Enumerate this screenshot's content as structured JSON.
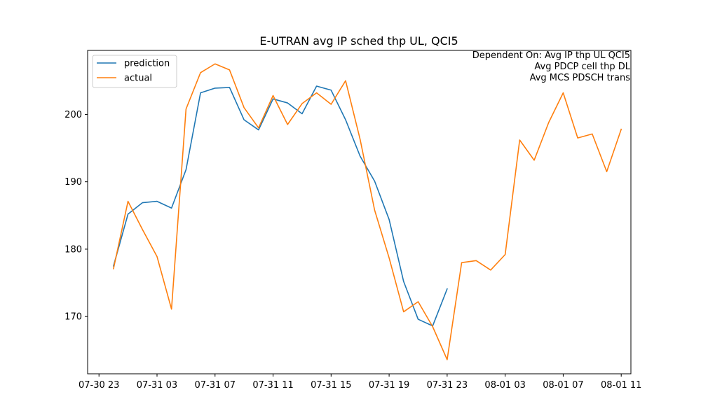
{
  "chart_data": {
    "type": "line",
    "title": "E-UTRAN avg IP sched thp UL, QCI5",
    "xlabel": "",
    "ylabel": "",
    "annotation_lines": [
      "Dependent On: Avg IP thp UL QCI5",
      "Avg PDCP cell thp DL",
      "Avg MCS PDSCH trans"
    ],
    "legend_position": "upper-left",
    "grid": false,
    "x_ticks": [
      "07-30 23",
      "07-31 03",
      "07-31 07",
      "07-31 11",
      "07-31 15",
      "07-31 19",
      "07-31 23",
      "08-01 03",
      "08-01 07",
      "08-01 11"
    ],
    "y_ticks": [
      "170",
      "180",
      "190",
      "200"
    ],
    "ylim": [
      161.5,
      209.5
    ],
    "series": [
      {
        "name": "prediction",
        "color": "#1f77b4",
        "x": [
          "07-31 00",
          "07-31 01",
          "07-31 02",
          "07-31 03",
          "07-31 04",
          "07-31 05",
          "07-31 06",
          "07-31 07",
          "07-31 08",
          "07-31 09",
          "07-31 10",
          "07-31 11",
          "07-31 12",
          "07-31 13",
          "07-31 14",
          "07-31 15",
          "07-31 16",
          "07-31 17",
          "07-31 18",
          "07-31 19",
          "07-31 20",
          "07-31 21",
          "07-31 22",
          "07-31 23"
        ],
        "y": [
          177.5,
          185.2,
          186.9,
          187.1,
          186.1,
          191.8,
          203.2,
          203.9,
          204.0,
          199.2,
          197.7,
          202.3,
          201.7,
          200.1,
          204.2,
          203.6,
          199.2,
          193.8,
          190.1,
          184.4,
          175.2,
          169.6,
          168.6,
          174.1
        ]
      },
      {
        "name": "actual",
        "color": "#ff7f0e",
        "x": [
          "07-31 00",
          "07-31 01",
          "07-31 02",
          "07-31 03",
          "07-31 04",
          "07-31 05",
          "07-31 06",
          "07-31 07",
          "07-31 08",
          "07-31 09",
          "07-31 10",
          "07-31 11",
          "07-31 12",
          "07-31 13",
          "07-31 14",
          "07-31 15",
          "07-31 16",
          "07-31 17",
          "07-31 18",
          "07-31 19",
          "07-31 20",
          "07-31 21",
          "07-31 22",
          "07-31 23",
          "08-01 00",
          "08-01 01",
          "08-01 02",
          "08-01 03",
          "08-01 04",
          "08-01 05",
          "08-01 06",
          "08-01 07",
          "08-01 08",
          "08-01 09",
          "08-01 10",
          "08-01 11"
        ],
        "y": [
          177.1,
          187.1,
          182.9,
          178.9,
          171.1,
          200.8,
          206.2,
          207.5,
          206.6,
          201.0,
          198.0,
          202.8,
          198.5,
          201.6,
          203.2,
          201.5,
          205.0,
          196.3,
          185.8,
          178.7,
          170.7,
          172.2,
          168.5,
          163.6,
          178.0,
          178.3,
          176.9,
          179.2,
          196.2,
          193.2,
          198.8,
          203.2,
          196.5,
          197.1,
          191.5,
          197.8
        ]
      }
    ]
  }
}
